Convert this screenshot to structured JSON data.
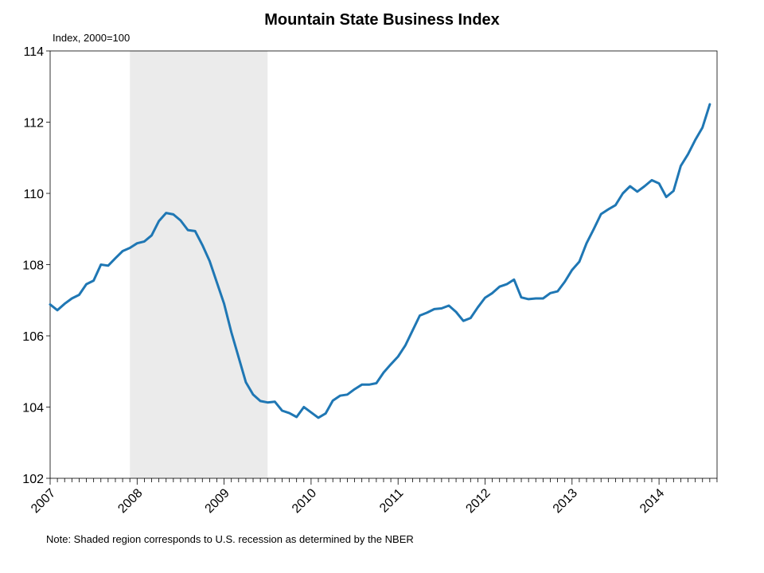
{
  "chart_data": {
    "type": "line",
    "title": "Mountain State Business Index",
    "ylabel": "Index, 2000=100",
    "xlabel": "",
    "note": "Note: Shaded region corresponds to U.S. recession as determined by the NBER",
    "ylim": [
      102,
      114
    ],
    "yticks": [
      102,
      104,
      106,
      108,
      110,
      112,
      114
    ],
    "xlim": [
      2007.0,
      2014.667
    ],
    "xticks": [
      "2007",
      "2008",
      "2009",
      "2010",
      "2011",
      "2012",
      "2013",
      "2014"
    ],
    "grid": false,
    "recession_shading": {
      "start": 2007.917,
      "end": 2009.5,
      "color": "#ebebeb"
    },
    "line_color": "#1f77b4",
    "series": [
      {
        "start_year": 2007,
        "start_month": 1,
        "frequency": "monthly",
        "values": [
          106.88,
          106.72,
          106.9,
          107.05,
          107.15,
          107.45,
          107.55,
          108.0,
          107.97,
          108.18,
          108.38,
          108.47,
          108.6,
          108.65,
          108.82,
          109.22,
          109.45,
          109.41,
          109.24,
          108.97,
          108.94,
          108.55,
          108.1,
          107.5,
          106.9,
          106.1,
          105.4,
          104.7,
          104.35,
          104.17,
          104.13,
          104.15,
          103.9,
          103.83,
          103.72,
          104.0,
          103.85,
          103.7,
          103.82,
          104.18,
          104.32,
          104.35,
          104.5,
          104.63,
          104.63,
          104.67,
          104.97,
          105.2,
          105.42,
          105.73,
          106.15,
          106.57,
          106.65,
          106.75,
          106.77,
          106.85,
          106.67,
          106.42,
          106.5,
          106.8,
          107.07,
          107.2,
          107.38,
          107.45,
          107.58,
          107.08,
          107.03,
          107.05,
          107.05,
          107.2,
          107.25,
          107.52,
          107.85,
          108.08,
          108.6,
          109.0,
          109.42,
          109.55,
          109.67,
          110.0,
          110.2,
          110.05,
          110.2,
          110.37,
          110.28,
          109.9,
          110.07,
          110.77,
          111.1,
          111.5,
          111.85,
          112.5
        ]
      }
    ]
  }
}
